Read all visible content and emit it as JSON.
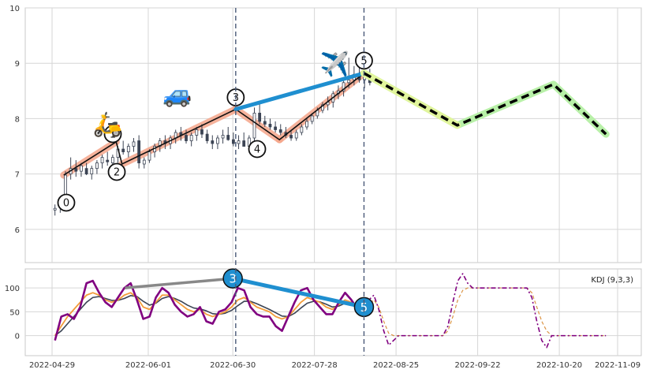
{
  "chart_data": [
    {
      "type": "candlestick",
      "panel": "price",
      "y_ticks": [
        "6",
        "7",
        "8",
        "9",
        "10"
      ],
      "ylim": [
        5.4,
        10.0
      ],
      "x_ticks": [
        "2022-04-29",
        "2022-06-01",
        "2022-06-30",
        "2022-07-28",
        "2022-08-25",
        "2022-09-22",
        "2022-10-20",
        "2022-11-09"
      ],
      "grid": true,
      "wave_points": [
        {
          "label": "0",
          "date": "2022-05-03",
          "value": 6.98
        },
        {
          "label": "1",
          "date": "2022-05-21",
          "value": 7.58
        },
        {
          "label": "2",
          "date": "2022-05-23",
          "value": 7.18
        },
        {
          "label": "3",
          "date": "2022-07-01",
          "value": 8.17
        },
        {
          "label": "4",
          "date": "2022-07-16",
          "value": 7.62
        },
        {
          "label": "5",
          "date": "2022-08-14",
          "value": 8.82
        }
      ],
      "projection": [
        {
          "date": "2022-08-14",
          "value": 8.82
        },
        {
          "date": "2022-09-15",
          "value": 7.88
        },
        {
          "date": "2022-10-18",
          "value": 8.62
        },
        {
          "date": "2022-11-05",
          "value": 7.72
        }
      ],
      "trend_line": [
        {
          "date": "2022-07-01",
          "value": 8.17
        },
        {
          "date": "2022-08-14",
          "value": 8.82
        }
      ],
      "vertical_markers": [
        "2022-07-01",
        "2022-08-14"
      ],
      "icons": [
        {
          "name": "scooter-icon",
          "glyph": "🛵",
          "date": "2022-05-18",
          "value": 7.76
        },
        {
          "name": "car-icon",
          "glyph": "🚙",
          "date": "2022-06-11",
          "value": 8.3
        },
        {
          "name": "airplane-icon",
          "glyph": "✈️",
          "date": "2022-08-04",
          "value": 8.84
        }
      ],
      "candles_approx": [
        [
          6.35,
          6.45,
          6.25,
          6.38
        ],
        [
          6.4,
          6.55,
          6.3,
          6.5
        ],
        [
          6.6,
          7.05,
          6.5,
          6.98
        ],
        [
          7.0,
          7.3,
          6.9,
          7.1
        ],
        [
          7.1,
          7.25,
          6.95,
          7.05
        ],
        [
          7.05,
          7.2,
          6.95,
          7.15
        ],
        [
          7.1,
          7.2,
          6.98,
          7.0
        ],
        [
          7.0,
          7.15,
          6.9,
          7.1
        ],
        [
          7.1,
          7.25,
          7.0,
          7.2
        ],
        [
          7.2,
          7.35,
          7.1,
          7.3
        ],
        [
          7.25,
          7.4,
          7.15,
          7.22
        ],
        [
          7.2,
          7.35,
          7.1,
          7.3
        ],
        [
          7.3,
          7.5,
          7.2,
          7.45
        ],
        [
          7.45,
          7.6,
          7.35,
          7.4
        ],
        [
          7.4,
          7.55,
          7.3,
          7.5
        ],
        [
          7.5,
          7.65,
          7.4,
          7.58
        ],
        [
          7.6,
          7.7,
          7.1,
          7.2
        ],
        [
          7.18,
          7.3,
          7.1,
          7.25
        ],
        [
          7.25,
          7.45,
          7.2,
          7.4
        ],
        [
          7.4,
          7.55,
          7.3,
          7.5
        ],
        [
          7.5,
          7.65,
          7.4,
          7.6
        ],
        [
          7.6,
          7.7,
          7.45,
          7.55
        ],
        [
          7.55,
          7.7,
          7.45,
          7.65
        ],
        [
          7.65,
          7.8,
          7.55,
          7.75
        ],
        [
          7.75,
          7.85,
          7.6,
          7.7
        ],
        [
          7.7,
          7.8,
          7.55,
          7.6
        ],
        [
          7.6,
          7.75,
          7.5,
          7.7
        ],
        [
          7.7,
          7.85,
          7.6,
          7.8
        ],
        [
          7.8,
          7.9,
          7.65,
          7.72
        ],
        [
          7.72,
          7.8,
          7.55,
          7.6
        ],
        [
          7.6,
          7.7,
          7.45,
          7.55
        ],
        [
          7.55,
          7.7,
          7.45,
          7.65
        ],
        [
          7.65,
          7.8,
          7.55,
          7.7
        ],
        [
          7.7,
          7.85,
          7.6,
          7.62
        ],
        [
          7.62,
          7.75,
          7.5,
          7.55
        ],
        [
          7.55,
          7.7,
          7.45,
          7.6
        ],
        [
          7.6,
          7.75,
          7.5,
          7.5
        ],
        [
          7.5,
          7.7,
          7.42,
          7.65
        ],
        [
          7.65,
          8.2,
          7.6,
          8.1
        ],
        [
          8.1,
          8.3,
          7.9,
          7.95
        ],
        [
          7.95,
          8.05,
          7.85,
          7.9
        ],
        [
          7.9,
          8.0,
          7.8,
          7.85
        ],
        [
          7.85,
          7.95,
          7.75,
          7.8
        ],
        [
          7.8,
          7.9,
          7.7,
          7.75
        ],
        [
          7.75,
          7.85,
          7.65,
          7.7
        ],
        [
          7.7,
          7.8,
          7.6,
          7.65
        ],
        [
          7.65,
          7.8,
          7.6,
          7.75
        ],
        [
          7.75,
          7.9,
          7.7,
          7.85
        ],
        [
          7.85,
          8.0,
          7.8,
          7.95
        ],
        [
          7.95,
          8.1,
          7.9,
          8.05
        ],
        [
          8.05,
          8.2,
          8.0,
          8.15
        ],
        [
          8.15,
          8.3,
          8.1,
          8.25
        ],
        [
          8.25,
          8.4,
          8.15,
          8.3
        ],
        [
          8.3,
          8.5,
          8.2,
          8.45
        ],
        [
          8.45,
          8.6,
          8.35,
          8.5
        ],
        [
          8.5,
          8.7,
          8.4,
          8.65
        ],
        [
          8.65,
          9.1,
          8.55,
          8.7
        ],
        [
          8.7,
          8.95,
          8.6,
          8.8
        ],
        [
          8.8,
          8.95,
          8.65,
          8.7
        ],
        [
          8.7,
          8.85,
          8.55,
          8.8
        ],
        [
          8.8,
          8.9,
          8.6,
          8.65
        ]
      ]
    },
    {
      "type": "line",
      "panel": "kdj",
      "legend": "KDJ (9,3,3)",
      "y_ticks": [
        "0",
        "50",
        "100"
      ],
      "ylim": [
        -42,
        140
      ],
      "x_ticks": [
        "2022-04-29",
        "2022-06-01",
        "2022-06-30",
        "2022-07-28",
        "2022-08-25",
        "2022-09-22",
        "2022-10-20",
        "2022-11-09"
      ],
      "colors": {
        "k": "#f39c3a",
        "d": "#3c4454",
        "j": "#800080",
        "divergence": "#888888",
        "wave_blue": "#1f8fd0"
      },
      "markers": [
        {
          "label": "3",
          "date": "2022-06-30",
          "value": 120
        },
        {
          "label": "5",
          "date": "2022-08-14",
          "value": 60
        }
      ],
      "divergence_line": [
        {
          "date": "2022-05-24",
          "value": 100
        },
        {
          "date": "2022-06-30",
          "value": 120
        }
      ],
      "k_values": [
        0,
        20,
        40,
        55,
        70,
        85,
        90,
        85,
        75,
        70,
        75,
        85,
        90,
        80,
        60,
        55,
        70,
        85,
        85,
        75,
        65,
        55,
        50,
        55,
        45,
        40,
        45,
        50,
        60,
        75,
        80,
        70,
        60,
        55,
        50,
        40,
        35,
        40,
        55,
        70,
        80,
        75,
        70,
        60,
        55,
        65,
        75,
        70,
        60,
        50
      ],
      "d_values": [
        0,
        10,
        25,
        40,
        55,
        70,
        80,
        82,
        78,
        74,
        74,
        78,
        84,
        82,
        72,
        64,
        68,
        78,
        82,
        78,
        72,
        64,
        58,
        56,
        52,
        46,
        45,
        47,
        53,
        63,
        72,
        72,
        67,
        61,
        55,
        48,
        41,
        40,
        47,
        58,
        68,
        72,
        71,
        66,
        60,
        62,
        68,
        69,
        65,
        58
      ],
      "j_values": [
        -10,
        40,
        45,
        35,
        60,
        110,
        115,
        90,
        70,
        60,
        80,
        100,
        110,
        75,
        35,
        40,
        80,
        100,
        90,
        65,
        50,
        40,
        45,
        60,
        30,
        25,
        50,
        55,
        70,
        100,
        95,
        60,
        45,
        40,
        40,
        20,
        10,
        40,
        70,
        95,
        100,
        75,
        60,
        45,
        45,
        70,
        90,
        75,
        55,
        40
      ],
      "projection_k": [
        50,
        65,
        75,
        60,
        30,
        5,
        0,
        0,
        0,
        0,
        0,
        0,
        0,
        0,
        0,
        0,
        0,
        10,
        40,
        75,
        95,
        100,
        100,
        100,
        100,
        100,
        100,
        100,
        100,
        100,
        100,
        100,
        100,
        100,
        90,
        60,
        30,
        10,
        0,
        0,
        0,
        0,
        0,
        0,
        0,
        0,
        0,
        0,
        0,
        0
      ],
      "projection_j": [
        50,
        75,
        85,
        55,
        10,
        -20,
        -10,
        0,
        0,
        0,
        0,
        0,
        0,
        0,
        0,
        0,
        0,
        20,
        70,
        115,
        130,
        110,
        100,
        100,
        100,
        100,
        100,
        100,
        100,
        100,
        100,
        100,
        100,
        100,
        80,
        30,
        -10,
        -25,
        0,
        0,
        0,
        0,
        0,
        0,
        0,
        0,
        0,
        0,
        0,
        0
      ]
    }
  ]
}
